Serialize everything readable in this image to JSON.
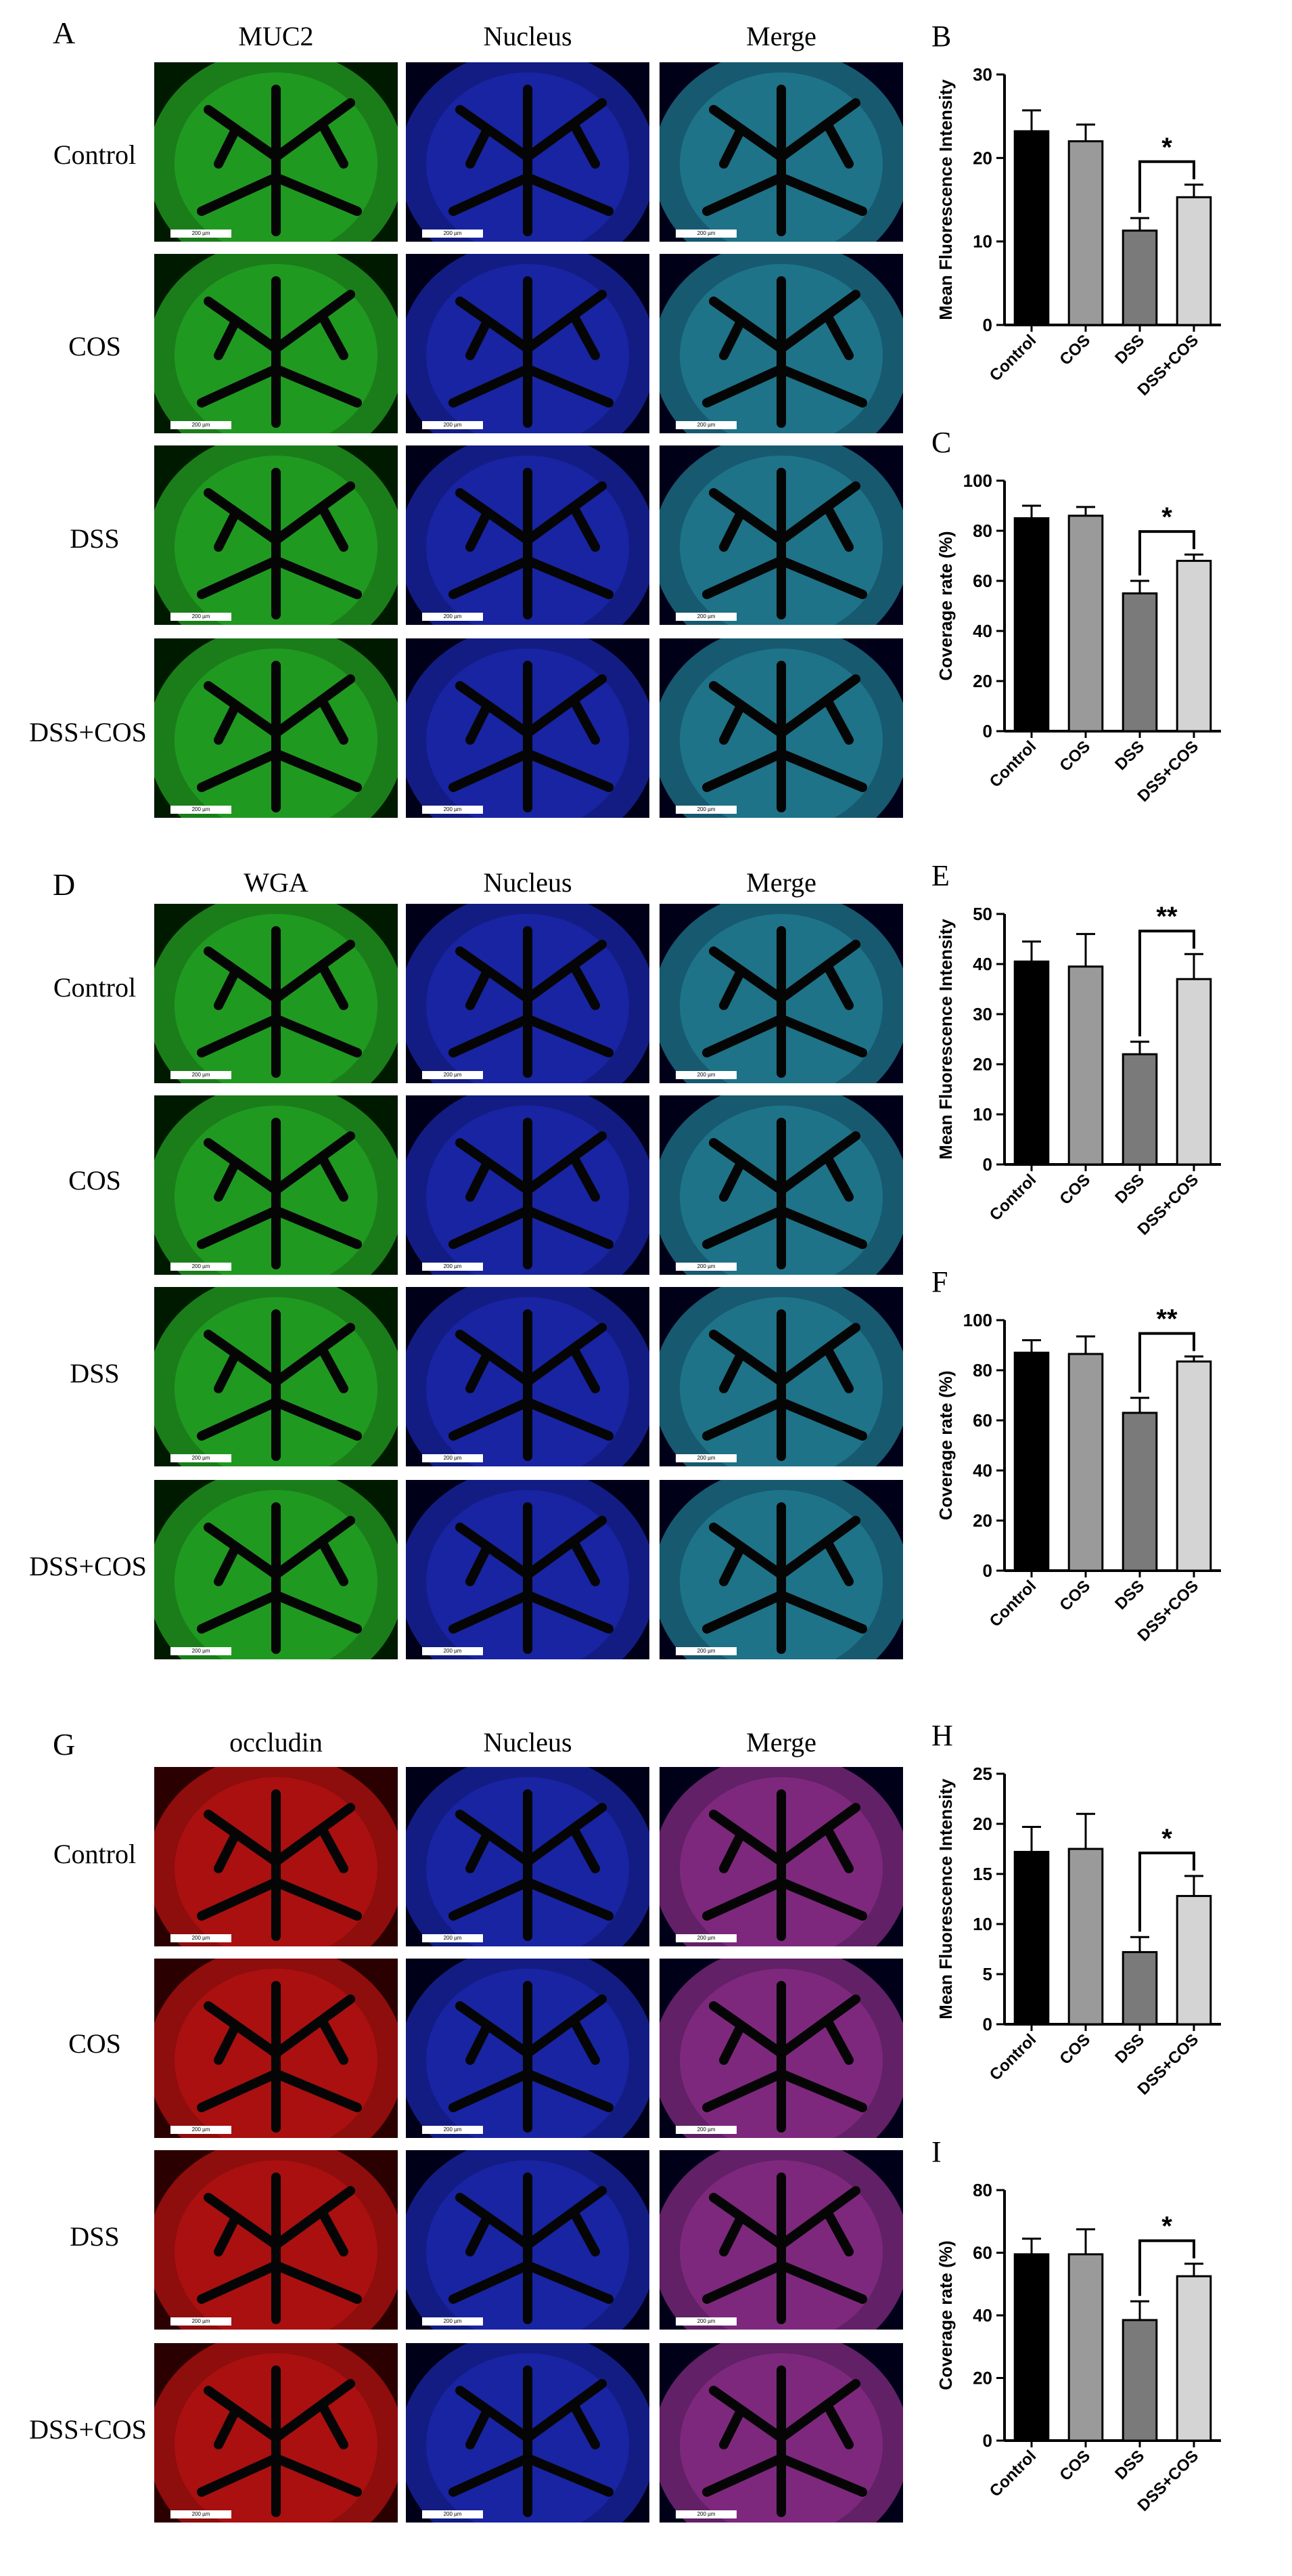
{
  "sections": [
    {
      "letter": "A",
      "columns": [
        "MUC2",
        "Nucleus",
        "Merge"
      ],
      "rows": [
        "Control",
        "COS",
        "DSS",
        "DSS+COS"
      ],
      "stain": "green",
      "scale_text": "200 µm"
    },
    {
      "letter": "D",
      "columns": [
        "WGA",
        "Nucleus",
        "Merge"
      ],
      "rows": [
        "Control",
        "COS",
        "DSS",
        "DSS+COS"
      ],
      "stain": "green",
      "scale_text": "200 µm"
    },
    {
      "letter": "G",
      "columns": [
        "occludin",
        "Nucleus",
        "Merge"
      ],
      "rows": [
        "Control",
        "COS",
        "DSS",
        "DSS+COS"
      ],
      "stain": "red",
      "scale_text": "200 µm"
    }
  ],
  "colors": {
    "green_stain": "#2fcf2f",
    "blue_stain": "#2233dd",
    "red_stain": "#e01818",
    "bar_control": "#000000",
    "bar_cos": "#9a9a9a",
    "bar_dss": "#7a7a7a",
    "bar_dss_cos": "#d4d4d4"
  },
  "chart_data": [
    {
      "letter": "B",
      "type": "bar",
      "categories": [
        "Control",
        "COS",
        "DSS",
        "DSS+COS"
      ],
      "values": [
        23.2,
        22.0,
        11.3,
        15.3
      ],
      "errors": [
        2.5,
        2.0,
        1.5,
        1.5
      ],
      "ylabel": "Mean Fluorescence Intensity",
      "ylim": [
        0,
        30
      ],
      "yticks": [
        0,
        10,
        20,
        30
      ],
      "significance": {
        "between": [
          2,
          3
        ],
        "label": "*"
      }
    },
    {
      "letter": "C",
      "type": "bar",
      "categories": [
        "Control",
        "COS",
        "DSS",
        "DSS+COS"
      ],
      "values": [
        85,
        86,
        55,
        68
      ],
      "errors": [
        5,
        3.5,
        5,
        2.5
      ],
      "ylabel": "Coverage rate  (%)",
      "ylim": [
        0,
        100
      ],
      "yticks": [
        0,
        20,
        40,
        60,
        80,
        100
      ],
      "significance": {
        "between": [
          2,
          3
        ],
        "label": "*"
      }
    },
    {
      "letter": "E",
      "type": "bar",
      "categories": [
        "Control",
        "COS",
        "DSS",
        "DSS+COS"
      ],
      "values": [
        40.5,
        39.5,
        22.0,
        37.0
      ],
      "errors": [
        4,
        6.5,
        2.5,
        5
      ],
      "ylabel": "Mean Fluorescence Intensity",
      "ylim": [
        0,
        50
      ],
      "yticks": [
        0,
        10,
        20,
        30,
        40,
        50
      ],
      "significance": {
        "between": [
          2,
          3
        ],
        "label": "**"
      }
    },
    {
      "letter": "F",
      "type": "bar",
      "categories": [
        "Control",
        "COS",
        "DSS",
        "DSS+COS"
      ],
      "values": [
        87,
        86.5,
        63,
        83.5
      ],
      "errors": [
        5,
        7,
        6,
        2
      ],
      "ylabel": "Coverage rate  (%)",
      "ylim": [
        0,
        100
      ],
      "yticks": [
        0,
        20,
        40,
        60,
        80,
        100
      ],
      "significance": {
        "between": [
          2,
          3
        ],
        "label": "**"
      }
    },
    {
      "letter": "H",
      "type": "bar",
      "categories": [
        "Control",
        "COS",
        "DSS",
        "DSS+COS"
      ],
      "values": [
        17.2,
        17.5,
        7.2,
        12.8
      ],
      "errors": [
        2.5,
        3.5,
        1.5,
        2
      ],
      "ylabel": "Mean Fluorescence Intensity",
      "ylim": [
        0,
        25
      ],
      "yticks": [
        0,
        5,
        10,
        15,
        20,
        25
      ],
      "significance": {
        "between": [
          2,
          3
        ],
        "label": "*"
      }
    },
    {
      "letter": "I",
      "type": "bar",
      "categories": [
        "Control",
        "COS",
        "DSS",
        "DSS+COS"
      ],
      "values": [
        59.5,
        59.5,
        38.5,
        52.5
      ],
      "errors": [
        5,
        8,
        6,
        4
      ],
      "ylabel": "Coverage rate  (%)",
      "ylim": [
        0,
        80
      ],
      "yticks": [
        0,
        20,
        40,
        60,
        80
      ],
      "significance": {
        "between": [
          2,
          3
        ],
        "label": "*"
      }
    }
  ]
}
